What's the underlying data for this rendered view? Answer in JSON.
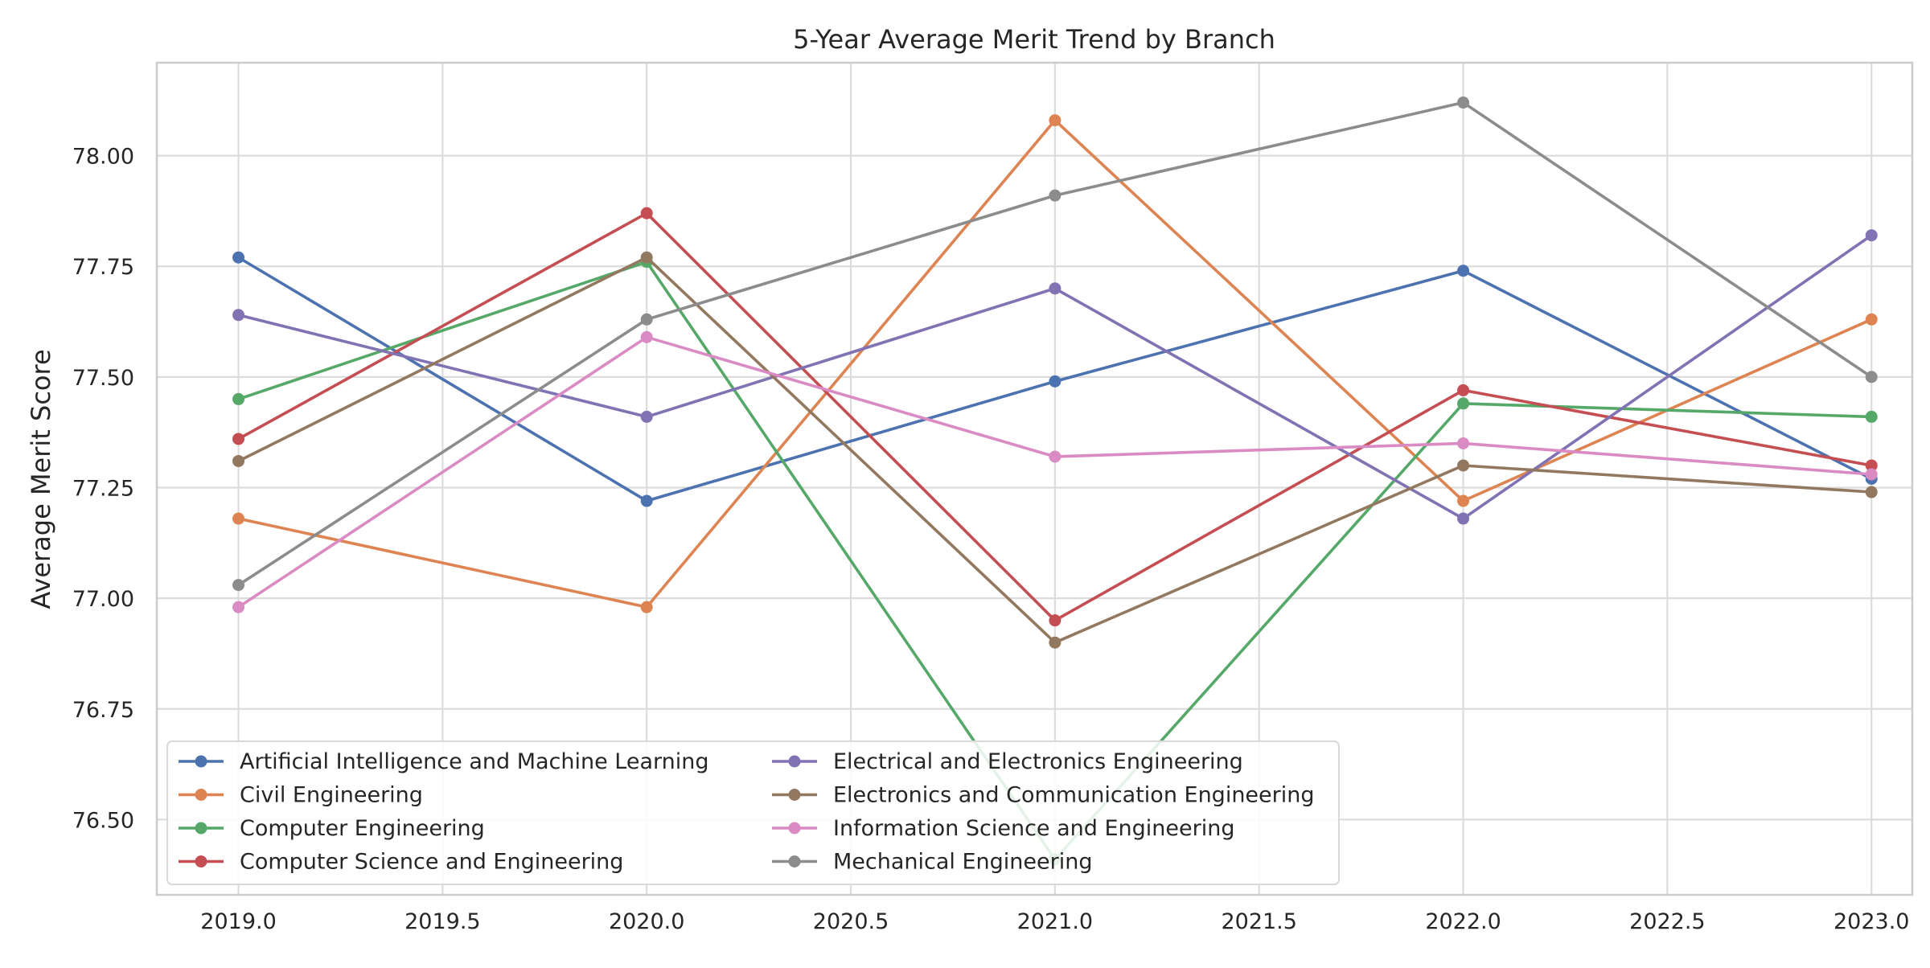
{
  "chart_data": {
    "type": "line",
    "title": "5-Year Average Merit Trend by Branch",
    "xlabel": "",
    "ylabel": "Average Merit Score",
    "x": [
      2019,
      2020,
      2021,
      2022,
      2023
    ],
    "xlim": [
      2018.8,
      2023.1
    ],
    "ylim": [
      76.33,
      78.21
    ],
    "xticks": [
      "2019.0",
      "2019.5",
      "2020.0",
      "2020.5",
      "2021.0",
      "2021.5",
      "2022.0",
      "2022.5",
      "2023.0"
    ],
    "xtick_values": [
      2019.0,
      2019.5,
      2020.0,
      2020.5,
      2021.0,
      2021.5,
      2022.0,
      2022.5,
      2023.0
    ],
    "yticks": [
      "76.50",
      "76.75",
      "77.00",
      "77.25",
      "77.50",
      "77.75",
      "78.00"
    ],
    "ytick_values": [
      76.5,
      76.75,
      77.0,
      77.25,
      77.5,
      77.75,
      78.0
    ],
    "grid": true,
    "legend_position": "lower-left",
    "series": [
      {
        "name": "Artificial Intelligence and Machine Learning",
        "color": "#4c72b0",
        "values": [
          77.77,
          77.22,
          77.49,
          77.74,
          77.27
        ]
      },
      {
        "name": "Civil Engineering",
        "color": "#dd8452",
        "values": [
          77.18,
          76.98,
          78.08,
          77.22,
          77.63
        ]
      },
      {
        "name": "Computer Engineering",
        "color": "#55a868",
        "values": [
          77.45,
          77.76,
          76.41,
          77.44,
          77.41
        ]
      },
      {
        "name": "Computer Science and Engineering",
        "color": "#c44e52",
        "values": [
          77.36,
          77.87,
          76.95,
          77.47,
          77.3
        ]
      },
      {
        "name": "Electrical and Electronics Engineering",
        "color": "#8172b3",
        "values": [
          77.64,
          77.41,
          77.7,
          77.18,
          77.82
        ]
      },
      {
        "name": "Electronics and Communication Engineering",
        "color": "#937860",
        "values": [
          77.31,
          77.77,
          76.9,
          77.3,
          77.24
        ]
      },
      {
        "name": "Information Science and Engineering",
        "color": "#da8bc3",
        "values": [
          76.98,
          77.59,
          77.32,
          77.35,
          77.28
        ]
      },
      {
        "name": "Mechanical Engineering",
        "color": "#8c8c8c",
        "values": [
          77.03,
          77.63,
          77.91,
          78.12,
          77.5
        ]
      }
    ]
  }
}
